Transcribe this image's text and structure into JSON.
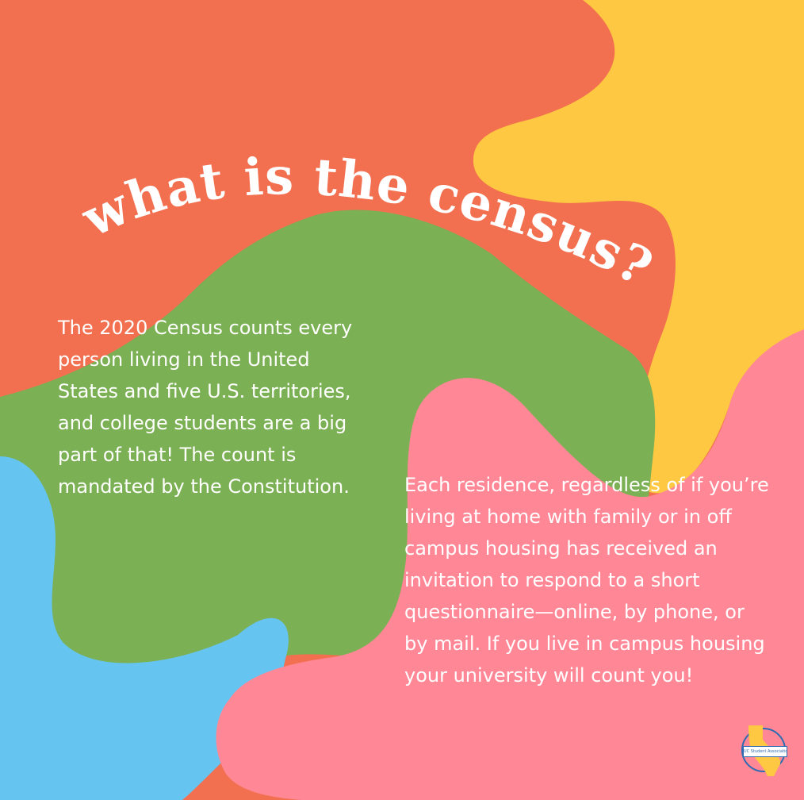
{
  "title": "what is the census?",
  "left_paragraph": "The 2020 Census counts every person living in the United States and five U.S. territories, and college students are a big part of that! The count is mandated by the Constitution.",
  "right_paragraph": "Each residence, regardless of if you’re living at home with family or in off campus housing has received an invitation to respond to a short questionnaire—online, by phone, or by mail. If you live in campus housing your university will count you!",
  "logo": {
    "text": "UC Student Association",
    "icon": "california-state-icon"
  },
  "colors": {
    "orange": "#f27050",
    "yellow": "#fec842",
    "green": "#7bb054",
    "blue": "#66c4f0",
    "pink": "#ff8796",
    "text": "#ffffff"
  }
}
